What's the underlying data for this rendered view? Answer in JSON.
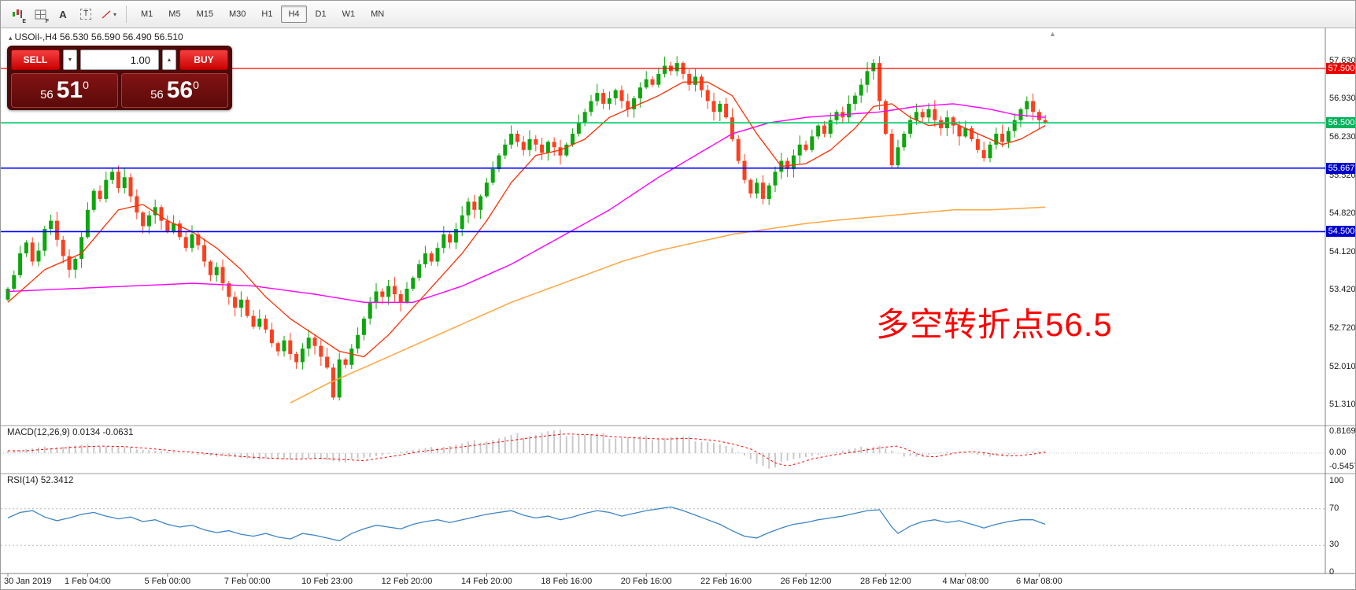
{
  "toolbar": {
    "tools": [
      {
        "name": "chart-window-tool",
        "sub": "E"
      },
      {
        "name": "grid-tool",
        "sub": "F"
      },
      {
        "name": "text-annotation-tool",
        "label": "A"
      },
      {
        "name": "text-label-tool",
        "label": "T"
      },
      {
        "name": "draw-shapes-tool",
        "caret": "▾"
      }
    ],
    "timeframes": [
      "M1",
      "M5",
      "M15",
      "M30",
      "H1",
      "H4",
      "D1",
      "W1",
      "MN"
    ],
    "active_timeframe": "H4"
  },
  "quote_line": {
    "marker": "▴",
    "text": "USOil-,H4 56.530 56.590 56.490 56.510"
  },
  "trade_panel": {
    "sell_label": "SELL",
    "buy_label": "BUY",
    "volume": "1.00",
    "sell_price": {
      "prefix": "56",
      "big": "51",
      "sup": "0"
    },
    "buy_price": {
      "prefix": "56",
      "big": "56",
      "sup": "0"
    }
  },
  "chart_data": {
    "type": "candlestick",
    "symbol": "USOil-",
    "timeframe": "H4",
    "quote": {
      "open": "56.530",
      "high": "56.590",
      "low": "56.490",
      "close": "56.510"
    },
    "colors": {
      "bull": "#0da60d",
      "bear": "#fb401f",
      "ma_fast": "#ff2d00",
      "ma_mid": "#ff00ff",
      "ma_slow": "#ffa640",
      "rsi": "#3d85c8",
      "macd_hist": "#c9c9c9",
      "macd_signal": "#ff0000"
    },
    "y_axis": [
      {
        "label": "57.630",
        "price": 57.63
      },
      {
        "label": "57.500",
        "price": 57.5,
        "badge": "#ee0000"
      },
      {
        "label": "56.930",
        "price": 56.93
      },
      {
        "label": "56.500",
        "price": 56.5,
        "badge": "#00b25c"
      },
      {
        "label": "56.230",
        "price": 56.23
      },
      {
        "label": "55.667",
        "price": 55.667,
        "badge": "#0000cc"
      },
      {
        "label": "55.520",
        "price": 55.52
      },
      {
        "label": "54.820",
        "price": 54.82
      },
      {
        "label": "54.500",
        "price": 54.5,
        "badge": "#0000cc"
      },
      {
        "label": "54.120",
        "price": 54.12
      },
      {
        "label": "53.420",
        "price": 53.42
      },
      {
        "label": "52.720",
        "price": 52.72
      },
      {
        "label": "52.010",
        "price": 52.01
      },
      {
        "label": "51.310",
        "price": 51.31
      }
    ],
    "hlines": [
      {
        "price": 57.5,
        "color": "#ff0000",
        "width": 1.2
      },
      {
        "price": 56.5,
        "color": "#00cc66",
        "width": 1.6
      },
      {
        "price": 55.667,
        "color": "#0000ff",
        "width": 1.6
      },
      {
        "price": 54.5,
        "color": "#0000ff",
        "width": 1.6
      }
    ],
    "x_labels": [
      {
        "label": "30 Jan 2019",
        "i": 0
      },
      {
        "label": "1 Feb 04:00",
        "i": 13
      },
      {
        "label": "5 Feb 00:00",
        "i": 26
      },
      {
        "label": "7 Feb 00:00",
        "i": 39
      },
      {
        "label": "10 Feb 23:00",
        "i": 52
      },
      {
        "label": "12 Feb 20:00",
        "i": 65
      },
      {
        "label": "14 Feb 20:00",
        "i": 78
      },
      {
        "label": "18 Feb 16:00",
        "i": 91
      },
      {
        "label": "20 Feb 16:00",
        "i": 104
      },
      {
        "label": "22 Feb 16:00",
        "i": 117
      },
      {
        "label": "26 Feb 12:00",
        "i": 130
      },
      {
        "label": "28 Feb 12:00",
        "i": 143
      },
      {
        "label": "4 Mar 08:00",
        "i": 156
      },
      {
        "label": "6 Mar 08:00",
        "i": 168
      }
    ],
    "closes": [
      53.45,
      53.7,
      54.1,
      54.3,
      53.95,
      54.15,
      54.55,
      54.7,
      54.35,
      54.05,
      53.8,
      54.0,
      54.4,
      54.9,
      55.25,
      55.1,
      55.45,
      55.6,
      55.3,
      55.5,
      55.15,
      54.85,
      54.6,
      54.8,
      54.95,
      54.7,
      54.5,
      54.65,
      54.4,
      54.2,
      54.45,
      54.25,
      53.95,
      53.7,
      53.85,
      53.55,
      53.3,
      53.1,
      53.25,
      52.95,
      52.75,
      52.9,
      52.7,
      52.45,
      52.3,
      52.5,
      52.25,
      52.1,
      52.35,
      52.55,
      52.4,
      52.2,
      52.0,
      51.45,
      52.15,
      52.05,
      52.35,
      52.6,
      52.9,
      53.2,
      53.4,
      53.3,
      53.5,
      53.35,
      53.2,
      53.45,
      53.65,
      53.9,
      54.1,
      53.95,
      54.2,
      54.45,
      54.3,
      54.55,
      54.8,
      55.05,
      54.9,
      55.15,
      55.4,
      55.65,
      55.9,
      56.1,
      56.3,
      56.15,
      56.0,
      56.2,
      56.1,
      55.95,
      56.15,
      56.05,
      55.9,
      56.1,
      56.3,
      56.5,
      56.7,
      56.9,
      57.05,
      56.85,
      56.95,
      57.1,
      56.9,
      56.75,
      56.95,
      57.15,
      57.3,
      57.2,
      57.4,
      57.55,
      57.45,
      57.6,
      57.4,
      57.2,
      57.35,
      57.1,
      56.9,
      56.7,
      56.85,
      56.6,
      56.2,
      55.8,
      55.45,
      55.2,
      55.4,
      55.1,
      55.35,
      55.6,
      55.8,
      55.65,
      55.9,
      56.1,
      56.0,
      56.25,
      56.45,
      56.3,
      56.55,
      56.7,
      56.6,
      56.85,
      57.0,
      57.2,
      57.45,
      57.6,
      56.9,
      56.3,
      55.72,
      56.05,
      56.3,
      56.55,
      56.7,
      56.6,
      56.75,
      56.55,
      56.4,
      56.6,
      56.45,
      56.25,
      56.4,
      56.2,
      56.0,
      55.85,
      56.1,
      56.3,
      56.15,
      56.35,
      56.55,
      56.75,
      56.9,
      56.7,
      56.55,
      56.51
    ],
    "ma_fast": [
      [
        0,
        53.2
      ],
      [
        6,
        53.8
      ],
      [
        12,
        54.1
      ],
      [
        18,
        54.9
      ],
      [
        22,
        55.0
      ],
      [
        26,
        54.7
      ],
      [
        30,
        54.5
      ],
      [
        34,
        54.2
      ],
      [
        38,
        53.8
      ],
      [
        42,
        53.3
      ],
      [
        46,
        52.9
      ],
      [
        50,
        52.6
      ],
      [
        54,
        52.3
      ],
      [
        58,
        52.2
      ],
      [
        62,
        52.6
      ],
      [
        66,
        53.1
      ],
      [
        70,
        53.6
      ],
      [
        74,
        54.1
      ],
      [
        78,
        54.7
      ],
      [
        82,
        55.4
      ],
      [
        86,
        55.9
      ],
      [
        90,
        56.0
      ],
      [
        94,
        56.2
      ],
      [
        98,
        56.6
      ],
      [
        102,
        56.8
      ],
      [
        106,
        57.0
      ],
      [
        110,
        57.25
      ],
      [
        114,
        57.25
      ],
      [
        118,
        57.0
      ],
      [
        122,
        56.3
      ],
      [
        126,
        55.7
      ],
      [
        130,
        55.75
      ],
      [
        134,
        56.0
      ],
      [
        138,
        56.4
      ],
      [
        141,
        56.8
      ],
      [
        144,
        56.85
      ],
      [
        147,
        56.6
      ],
      [
        150,
        56.45
      ],
      [
        154,
        56.5
      ],
      [
        158,
        56.3
      ],
      [
        162,
        56.1
      ],
      [
        165,
        56.2
      ],
      [
        169,
        56.45
      ]
    ],
    "ma_mid": [
      [
        0,
        53.4
      ],
      [
        10,
        53.45
      ],
      [
        20,
        53.5
      ],
      [
        30,
        53.55
      ],
      [
        40,
        53.5
      ],
      [
        50,
        53.35
      ],
      [
        58,
        53.2
      ],
      [
        66,
        53.2
      ],
      [
        74,
        53.5
      ],
      [
        82,
        53.9
      ],
      [
        90,
        54.4
      ],
      [
        98,
        54.9
      ],
      [
        106,
        55.5
      ],
      [
        112,
        55.9
      ],
      [
        118,
        56.3
      ],
      [
        124,
        56.5
      ],
      [
        130,
        56.6
      ],
      [
        136,
        56.65
      ],
      [
        142,
        56.7
      ],
      [
        148,
        56.8
      ],
      [
        154,
        56.85
      ],
      [
        160,
        56.75
      ],
      [
        164,
        56.65
      ],
      [
        169,
        56.6
      ]
    ],
    "ma_slow": [
      [
        46,
        51.35
      ],
      [
        52,
        51.7
      ],
      [
        58,
        52.0
      ],
      [
        64,
        52.3
      ],
      [
        70,
        52.6
      ],
      [
        76,
        52.9
      ],
      [
        82,
        53.2
      ],
      [
        88,
        53.45
      ],
      [
        94,
        53.7
      ],
      [
        100,
        53.95
      ],
      [
        106,
        54.15
      ],
      [
        112,
        54.3
      ],
      [
        118,
        54.45
      ],
      [
        124,
        54.55
      ],
      [
        130,
        54.65
      ],
      [
        136,
        54.72
      ],
      [
        142,
        54.78
      ],
      [
        148,
        54.84
      ],
      [
        154,
        54.9
      ],
      [
        160,
        54.9
      ],
      [
        169,
        54.95
      ]
    ],
    "macd": {
      "title": "MACD(12,26,9) 0.0134 -0.0631",
      "scale": [
        {
          "label": "0.8169",
          "v": 0.8169
        },
        {
          "label": "0.00",
          "v": 0
        },
        {
          "label": "-0.5457",
          "v": -0.5457
        }
      ],
      "points": [
        [
          0,
          0.1
        ],
        [
          4,
          0.18
        ],
        [
          8,
          0.26
        ],
        [
          12,
          0.3
        ],
        [
          16,
          0.28
        ],
        [
          20,
          0.2
        ],
        [
          24,
          0.1
        ],
        [
          28,
          0.02
        ],
        [
          32,
          -0.08
        ],
        [
          36,
          -0.16
        ],
        [
          40,
          -0.22
        ],
        [
          44,
          -0.26
        ],
        [
          48,
          -0.22
        ],
        [
          52,
          -0.28
        ],
        [
          55,
          -0.32
        ],
        [
          58,
          -0.2
        ],
        [
          61,
          -0.08
        ],
        [
          64,
          0.06
        ],
        [
          68,
          0.18
        ],
        [
          72,
          0.3
        ],
        [
          76,
          0.44
        ],
        [
          80,
          0.58
        ],
        [
          84,
          0.72
        ],
        [
          88,
          0.82
        ],
        [
          92,
          0.78
        ],
        [
          96,
          0.7
        ],
        [
          100,
          0.64
        ],
        [
          104,
          0.6
        ],
        [
          108,
          0.63
        ],
        [
          112,
          0.55
        ],
        [
          115,
          0.4
        ],
        [
          118,
          0.18
        ],
        [
          120,
          -0.1
        ],
        [
          122,
          -0.42
        ],
        [
          124,
          -0.55
        ],
        [
          126,
          -0.42
        ],
        [
          128,
          -0.25
        ],
        [
          131,
          -0.1
        ],
        [
          134,
          0.02
        ],
        [
          137,
          0.14
        ],
        [
          140,
          0.26
        ],
        [
          142,
          0.3
        ],
        [
          144,
          0.1
        ],
        [
          146,
          -0.12
        ],
        [
          148,
          -0.16
        ],
        [
          150,
          -0.06
        ],
        [
          152,
          0.03
        ],
        [
          154,
          0.06
        ],
        [
          156,
          0.02
        ],
        [
          158,
          -0.06
        ],
        [
          160,
          -0.12
        ],
        [
          162,
          -0.1
        ],
        [
          164,
          -0.04
        ],
        [
          166,
          0.04
        ],
        [
          168,
          0.08
        ],
        [
          169,
          0.06
        ]
      ]
    },
    "rsi": {
      "title": "RSI(14) 52.3412",
      "levels": [
        100,
        70,
        30,
        0
      ],
      "points": [
        [
          0,
          60
        ],
        [
          2,
          66
        ],
        [
          4,
          68
        ],
        [
          6,
          61
        ],
        [
          8,
          57
        ],
        [
          10,
          60
        ],
        [
          12,
          64
        ],
        [
          14,
          66
        ],
        [
          16,
          62
        ],
        [
          18,
          59
        ],
        [
          20,
          61
        ],
        [
          22,
          56
        ],
        [
          24,
          58
        ],
        [
          26,
          53
        ],
        [
          28,
          50
        ],
        [
          30,
          52
        ],
        [
          32,
          47
        ],
        [
          34,
          44
        ],
        [
          36,
          46
        ],
        [
          38,
          42
        ],
        [
          40,
          40
        ],
        [
          42,
          43
        ],
        [
          44,
          39
        ],
        [
          46,
          37
        ],
        [
          48,
          43
        ],
        [
          50,
          41
        ],
        [
          52,
          38
        ],
        [
          54,
          35
        ],
        [
          56,
          43
        ],
        [
          58,
          48
        ],
        [
          60,
          52
        ],
        [
          62,
          50
        ],
        [
          64,
          48
        ],
        [
          66,
          53
        ],
        [
          68,
          56
        ],
        [
          70,
          58
        ],
        [
          72,
          55
        ],
        [
          74,
          58
        ],
        [
          76,
          61
        ],
        [
          78,
          64
        ],
        [
          80,
          66
        ],
        [
          82,
          68
        ],
        [
          84,
          63
        ],
        [
          86,
          60
        ],
        [
          88,
          62
        ],
        [
          90,
          58
        ],
        [
          92,
          61
        ],
        [
          94,
          65
        ],
        [
          96,
          68
        ],
        [
          98,
          66
        ],
        [
          100,
          62
        ],
        [
          102,
          65
        ],
        [
          104,
          68
        ],
        [
          106,
          70
        ],
        [
          108,
          72
        ],
        [
          110,
          68
        ],
        [
          112,
          63
        ],
        [
          114,
          58
        ],
        [
          116,
          53
        ],
        [
          118,
          46
        ],
        [
          120,
          40
        ],
        [
          122,
          38
        ],
        [
          124,
          44
        ],
        [
          126,
          49
        ],
        [
          128,
          53
        ],
        [
          130,
          55
        ],
        [
          132,
          58
        ],
        [
          134,
          60
        ],
        [
          136,
          62
        ],
        [
          138,
          65
        ],
        [
          140,
          68
        ],
        [
          142,
          69
        ],
        [
          144,
          50
        ],
        [
          145,
          43
        ],
        [
          147,
          51
        ],
        [
          149,
          56
        ],
        [
          151,
          58
        ],
        [
          153,
          55
        ],
        [
          155,
          57
        ],
        [
          157,
          53
        ],
        [
          159,
          49
        ],
        [
          161,
          53
        ],
        [
          163,
          56
        ],
        [
          165,
          58
        ],
        [
          167,
          58
        ],
        [
          169,
          53
        ]
      ]
    },
    "annotation": {
      "text": "多空转折点56.5",
      "color": "#ff0000"
    },
    "shift_marker": "▲"
  }
}
